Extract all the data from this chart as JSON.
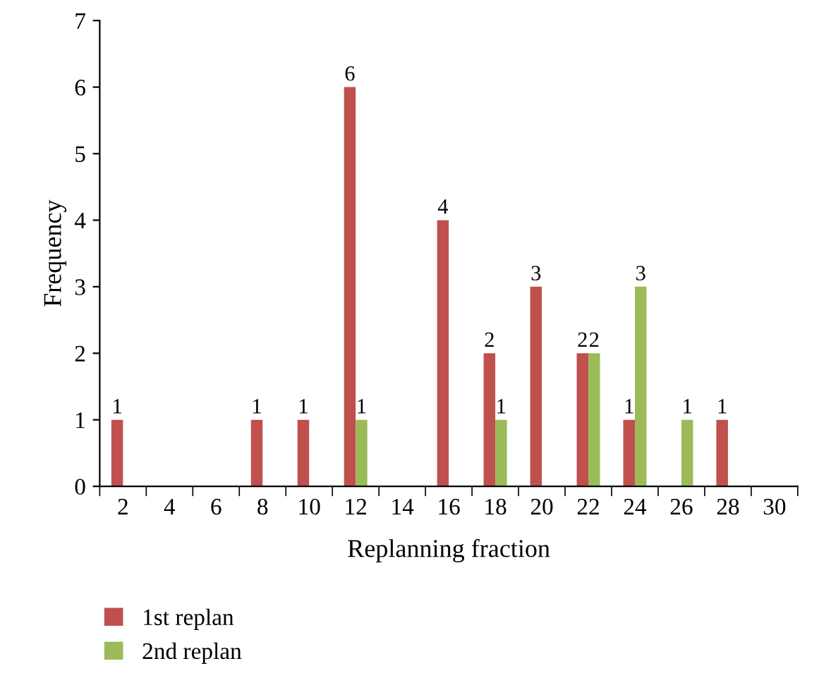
{
  "chart_data": {
    "type": "bar",
    "xlabel": "Replanning fraction",
    "ylabel": "Frequency",
    "categories": [
      "2",
      "4",
      "6",
      "8",
      "10",
      "12",
      "14",
      "16",
      "18",
      "20",
      "22",
      "24",
      "26",
      "28",
      "30"
    ],
    "series": [
      {
        "name": "1st replan",
        "color": "#c0504d",
        "values": [
          1,
          null,
          null,
          1,
          1,
          6,
          null,
          4,
          2,
          3,
          2,
          1,
          null,
          1,
          null
        ]
      },
      {
        "name": "2nd replan",
        "color": "#9bbb59",
        "values": [
          null,
          null,
          null,
          null,
          null,
          1,
          null,
          null,
          1,
          null,
          2,
          3,
          1,
          null,
          null
        ]
      }
    ],
    "ylim": [
      0,
      7
    ],
    "yticks": [
      0,
      1,
      2,
      3,
      4,
      5,
      6,
      7
    ],
    "grid": false,
    "legend": "bottom left",
    "data_labels": true
  }
}
